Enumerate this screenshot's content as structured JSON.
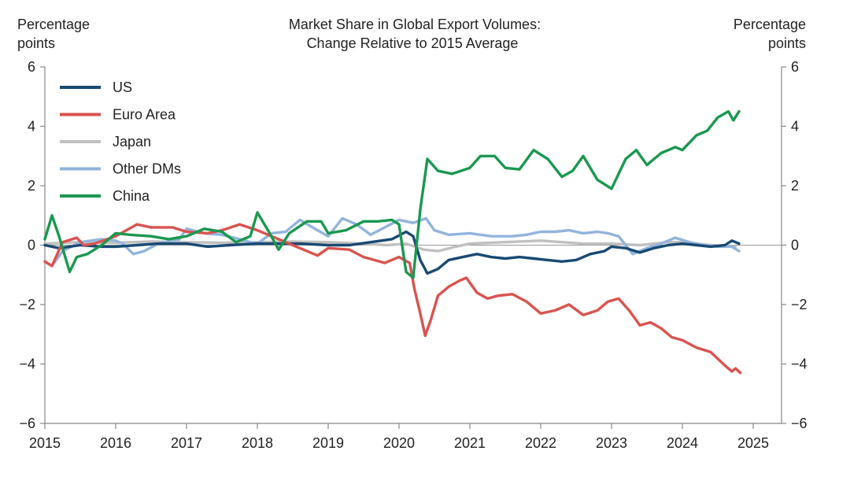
{
  "chart_data": {
    "type": "line",
    "title_lines": [
      "Market Share in Global Export Volumes:",
      "Change Relative to 2015 Average"
    ],
    "left_axis_label": [
      "Percentage",
      "points"
    ],
    "right_axis_label": [
      "Percentage",
      "points"
    ],
    "xlim": [
      2015,
      2025.4
    ],
    "ylim": [
      -6,
      6
    ],
    "x_ticks": [
      2015,
      2016,
      2017,
      2018,
      2019,
      2020,
      2021,
      2022,
      2023,
      2024,
      2025
    ],
    "x_tick_labels": [
      "2015",
      "2016",
      "2017",
      "2018",
      "2019",
      "2020",
      "2021",
      "2022",
      "2023",
      "2024",
      "2025"
    ],
    "y_ticks": [
      6,
      4,
      2,
      0,
      -2,
      -4,
      -6
    ],
    "left_tick_labels": [
      "6",
      "4",
      "2",
      "0",
      "−2",
      "−4",
      "−6"
    ],
    "right_tick_labels": [
      "6",
      "4",
      "2",
      "0",
      "−2",
      "−4",
      "−6"
    ],
    "legend_position": "top-left",
    "series": [
      {
        "name": "Japan",
        "color": "#c0c0c0",
        "points": [
          [
            2015,
            0.05
          ],
          [
            2015.5,
            0.1
          ],
          [
            2016,
            0.08
          ],
          [
            2016.5,
            0.12
          ],
          [
            2017,
            0.1
          ],
          [
            2017.5,
            0.08
          ],
          [
            2018,
            0.1
          ],
          [
            2018.5,
            0.12
          ],
          [
            2019,
            0.1
          ],
          [
            2019.5,
            0.05
          ],
          [
            2019.83,
            0.0
          ],
          [
            2020.1,
            0.05
          ],
          [
            2020.35,
            -0.15
          ],
          [
            2020.55,
            -0.2
          ],
          [
            2020.8,
            -0.05
          ],
          [
            2021,
            0.05
          ],
          [
            2021.5,
            0.1
          ],
          [
            2022,
            0.15
          ],
          [
            2022.3,
            0.1
          ],
          [
            2022.6,
            0.05
          ],
          [
            2023,
            0.05
          ],
          [
            2023.4,
            0.0
          ],
          [
            2023.8,
            0.1
          ],
          [
            2024,
            0.1
          ],
          [
            2024.4,
            0.0
          ],
          [
            2024.75,
            -0.05
          ]
        ]
      },
      {
        "name": "Other DMs",
        "color": "#92b4dc",
        "points": [
          [
            2015,
            -0.55
          ],
          [
            2015.1,
            -0.7
          ],
          [
            2015.25,
            -0.2
          ],
          [
            2015.5,
            0.1
          ],
          [
            2015.8,
            0.2
          ],
          [
            2016,
            0.15
          ],
          [
            2016.1,
            0.05
          ],
          [
            2016.25,
            -0.3
          ],
          [
            2016.4,
            -0.2
          ],
          [
            2016.6,
            0.05
          ],
          [
            2016.9,
            0.2
          ],
          [
            2017.0,
            0.55
          ],
          [
            2017.25,
            0.4
          ],
          [
            2017.5,
            0.35
          ],
          [
            2017.75,
            0.2
          ],
          [
            2017.9,
            0.1
          ],
          [
            2018.0,
            0.05
          ],
          [
            2018.2,
            0.4
          ],
          [
            2018.4,
            0.45
          ],
          [
            2018.6,
            0.85
          ],
          [
            2018.85,
            0.5
          ],
          [
            2019,
            0.3
          ],
          [
            2019.2,
            0.9
          ],
          [
            2019.4,
            0.7
          ],
          [
            2019.6,
            0.35
          ],
          [
            2019.8,
            0.6
          ],
          [
            2020.0,
            0.85
          ],
          [
            2020.2,
            0.75
          ],
          [
            2020.38,
            0.9
          ],
          [
            2020.5,
            0.5
          ],
          [
            2020.7,
            0.35
          ],
          [
            2021,
            0.4
          ],
          [
            2021.3,
            0.3
          ],
          [
            2021.6,
            0.3
          ],
          [
            2021.8,
            0.35
          ],
          [
            2022,
            0.45
          ],
          [
            2022.2,
            0.45
          ],
          [
            2022.4,
            0.5
          ],
          [
            2022.6,
            0.4
          ],
          [
            2022.8,
            0.45
          ],
          [
            2022.95,
            0.4
          ],
          [
            2023.1,
            0.3
          ],
          [
            2023.3,
            -0.3
          ],
          [
            2023.5,
            -0.1
          ],
          [
            2023.7,
            0.05
          ],
          [
            2023.9,
            0.25
          ],
          [
            2024.1,
            0.1
          ],
          [
            2024.3,
            0.0
          ],
          [
            2024.5,
            -0.05
          ],
          [
            2024.7,
            -0.05
          ],
          [
            2024.8,
            -0.2
          ]
        ]
      },
      {
        "name": "US",
        "color": "#184a73",
        "points": [
          [
            2015,
            0.0
          ],
          [
            2015.2,
            -0.1
          ],
          [
            2015.5,
            0.0
          ],
          [
            2015.8,
            -0.05
          ],
          [
            2016,
            -0.05
          ],
          [
            2016.3,
            0.0
          ],
          [
            2016.6,
            0.05
          ],
          [
            2017,
            0.05
          ],
          [
            2017.3,
            -0.05
          ],
          [
            2017.6,
            0.0
          ],
          [
            2018,
            0.05
          ],
          [
            2018.3,
            0.05
          ],
          [
            2018.6,
            0.05
          ],
          [
            2019,
            0.0
          ],
          [
            2019.3,
            0.0
          ],
          [
            2019.6,
            0.1
          ],
          [
            2019.9,
            0.2
          ],
          [
            2020.1,
            0.45
          ],
          [
            2020.2,
            0.3
          ],
          [
            2020.3,
            -0.5
          ],
          [
            2020.4,
            -0.95
          ],
          [
            2020.55,
            -0.8
          ],
          [
            2020.7,
            -0.5
          ],
          [
            2020.9,
            -0.4
          ],
          [
            2021.1,
            -0.3
          ],
          [
            2021.3,
            -0.4
          ],
          [
            2021.5,
            -0.45
          ],
          [
            2021.7,
            -0.4
          ],
          [
            2021.9,
            -0.45
          ],
          [
            2022.1,
            -0.5
          ],
          [
            2022.3,
            -0.55
          ],
          [
            2022.5,
            -0.5
          ],
          [
            2022.7,
            -0.3
          ],
          [
            2022.9,
            -0.2
          ],
          [
            2023.0,
            -0.05
          ],
          [
            2023.2,
            -0.1
          ],
          [
            2023.4,
            -0.25
          ],
          [
            2023.6,
            -0.1
          ],
          [
            2023.8,
            0.0
          ],
          [
            2024.0,
            0.05
          ],
          [
            2024.2,
            0.0
          ],
          [
            2024.4,
            -0.05
          ],
          [
            2024.6,
            0.0
          ],
          [
            2024.7,
            0.15
          ],
          [
            2024.8,
            0.05
          ]
        ]
      },
      {
        "name": "Euro Area",
        "color": "#d9534f",
        "points": [
          [
            2015,
            -0.55
          ],
          [
            2015.1,
            -0.7
          ],
          [
            2015.25,
            0.1
          ],
          [
            2015.45,
            0.25
          ],
          [
            2015.55,
            0.0
          ],
          [
            2015.7,
            0.05
          ],
          [
            2016,
            0.3
          ],
          [
            2016.3,
            0.7
          ],
          [
            2016.5,
            0.6
          ],
          [
            2016.8,
            0.6
          ],
          [
            2017,
            0.45
          ],
          [
            2017.3,
            0.4
          ],
          [
            2017.5,
            0.5
          ],
          [
            2017.75,
            0.7
          ],
          [
            2018,
            0.5
          ],
          [
            2018.3,
            0.2
          ],
          [
            2018.6,
            -0.1
          ],
          [
            2018.85,
            -0.35
          ],
          [
            2019,
            -0.1
          ],
          [
            2019.3,
            -0.15
          ],
          [
            2019.5,
            -0.4
          ],
          [
            2019.8,
            -0.6
          ],
          [
            2020.0,
            -0.4
          ],
          [
            2020.15,
            -0.6
          ],
          [
            2020.22,
            -1.5
          ],
          [
            2020.3,
            -2.3
          ],
          [
            2020.37,
            -3.05
          ],
          [
            2020.45,
            -2.5
          ],
          [
            2020.55,
            -1.7
          ],
          [
            2020.7,
            -1.4
          ],
          [
            2020.85,
            -1.2
          ],
          [
            2020.95,
            -1.1
          ],
          [
            2021.1,
            -1.6
          ],
          [
            2021.25,
            -1.8
          ],
          [
            2021.4,
            -1.7
          ],
          [
            2021.6,
            -1.65
          ],
          [
            2021.8,
            -1.9
          ],
          [
            2022.0,
            -2.3
          ],
          [
            2022.2,
            -2.2
          ],
          [
            2022.4,
            -2.0
          ],
          [
            2022.6,
            -2.35
          ],
          [
            2022.8,
            -2.2
          ],
          [
            2022.95,
            -1.9
          ],
          [
            2023.1,
            -1.8
          ],
          [
            2023.25,
            -2.2
          ],
          [
            2023.4,
            -2.7
          ],
          [
            2023.55,
            -2.6
          ],
          [
            2023.7,
            -2.8
          ],
          [
            2023.85,
            -3.1
          ],
          [
            2024.0,
            -3.2
          ],
          [
            2024.2,
            -3.45
          ],
          [
            2024.4,
            -3.6
          ],
          [
            2024.6,
            -4.05
          ],
          [
            2024.7,
            -4.25
          ],
          [
            2024.75,
            -4.15
          ],
          [
            2024.82,
            -4.3
          ]
        ]
      },
      {
        "name": "China",
        "color": "#1a9850",
        "points": [
          [
            2015,
            0.2
          ],
          [
            2015.1,
            1.0
          ],
          [
            2015.2,
            0.3
          ],
          [
            2015.35,
            -0.9
          ],
          [
            2015.45,
            -0.4
          ],
          [
            2015.6,
            -0.3
          ],
          [
            2015.8,
            0.0
          ],
          [
            2016.0,
            0.4
          ],
          [
            2016.2,
            0.35
          ],
          [
            2016.5,
            0.3
          ],
          [
            2016.75,
            0.2
          ],
          [
            2017.0,
            0.3
          ],
          [
            2017.25,
            0.55
          ],
          [
            2017.5,
            0.45
          ],
          [
            2017.7,
            0.1
          ],
          [
            2017.9,
            0.3
          ],
          [
            2018.0,
            1.1
          ],
          [
            2018.15,
            0.5
          ],
          [
            2018.3,
            -0.15
          ],
          [
            2018.45,
            0.4
          ],
          [
            2018.7,
            0.8
          ],
          [
            2018.9,
            0.8
          ],
          [
            2019.0,
            0.4
          ],
          [
            2019.25,
            0.5
          ],
          [
            2019.5,
            0.8
          ],
          [
            2019.7,
            0.8
          ],
          [
            2019.9,
            0.85
          ],
          [
            2020.0,
            0.7
          ],
          [
            2020.1,
            -0.9
          ],
          [
            2020.2,
            -1.1
          ],
          [
            2020.3,
            1.2
          ],
          [
            2020.4,
            2.9
          ],
          [
            2020.55,
            2.5
          ],
          [
            2020.75,
            2.4
          ],
          [
            2021.0,
            2.6
          ],
          [
            2021.15,
            3.0
          ],
          [
            2021.35,
            3.0
          ],
          [
            2021.5,
            2.6
          ],
          [
            2021.7,
            2.55
          ],
          [
            2021.9,
            3.2
          ],
          [
            2022.1,
            2.9
          ],
          [
            2022.3,
            2.3
          ],
          [
            2022.45,
            2.5
          ],
          [
            2022.6,
            3.0
          ],
          [
            2022.8,
            2.2
          ],
          [
            2023.0,
            1.9
          ],
          [
            2023.2,
            2.9
          ],
          [
            2023.35,
            3.2
          ],
          [
            2023.5,
            2.7
          ],
          [
            2023.7,
            3.1
          ],
          [
            2023.9,
            3.3
          ],
          [
            2024.0,
            3.2
          ],
          [
            2024.2,
            3.7
          ],
          [
            2024.35,
            3.85
          ],
          [
            2024.5,
            4.3
          ],
          [
            2024.65,
            4.5
          ],
          [
            2024.72,
            4.2
          ],
          [
            2024.8,
            4.5
          ]
        ]
      }
    ],
    "legend_order": [
      2,
      3,
      0,
      1,
      4
    ]
  }
}
